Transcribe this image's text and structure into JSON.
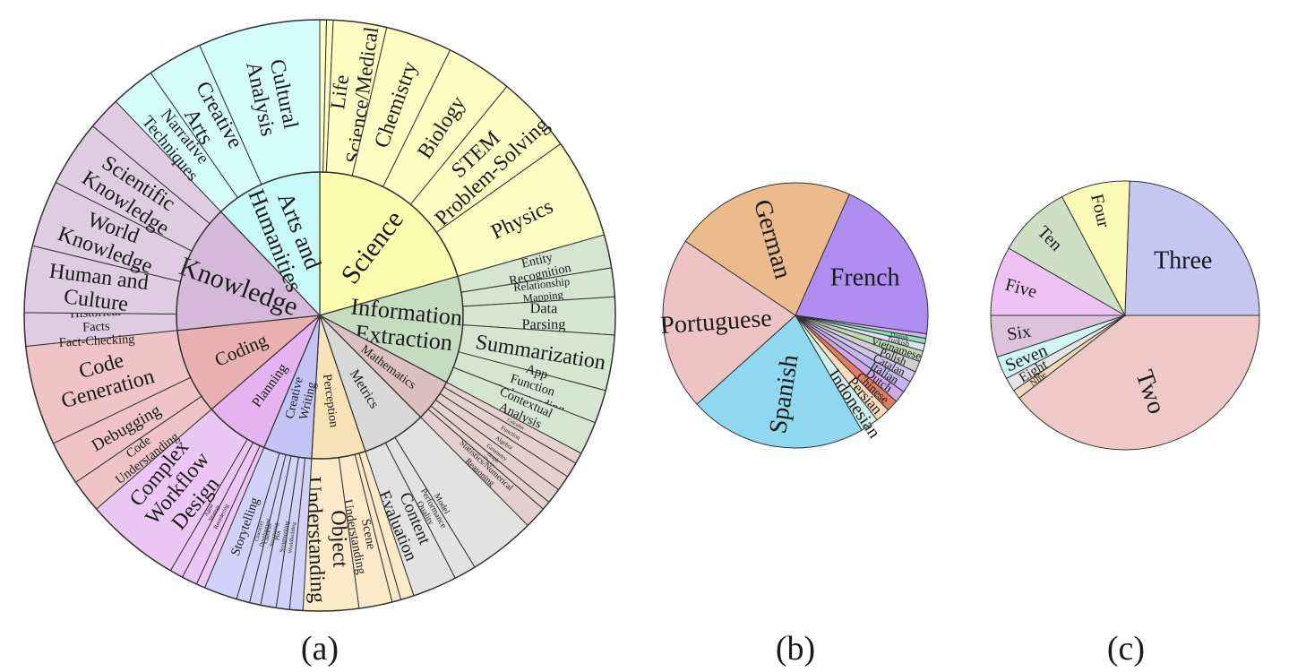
{
  "figure": {
    "panel_labels": [
      "(a)",
      "(b)",
      "(c)"
    ]
  },
  "chart_data": [
    {
      "type": "sunburst",
      "panel": "(a)",
      "inner": [
        {
          "name": "Science",
          "value": 17,
          "color": "#fdfdb0"
        },
        {
          "name": "Information\nExtraction",
          "value": 10,
          "color": "#c6dcc0"
        },
        {
          "name": "Mathematics",
          "value": 4,
          "color": "#dcc0c0"
        },
        {
          "name": "Metrics",
          "value": 6,
          "color": "#d8d8d8"
        },
        {
          "name": "Perception",
          "value": 5,
          "color": "#f8e3b8"
        },
        {
          "name": "Creative\nWriting",
          "value": 4.5,
          "color": "#c3c3f5"
        },
        {
          "name": "Planning",
          "value": 6,
          "color": "#e5b3f0"
        },
        {
          "name": "Coding",
          "value": 8,
          "color": "#e8b0b0"
        },
        {
          "name": "Knowledge",
          "value": 12,
          "color": "#d4bad8"
        },
        {
          "name": "Arts and\nHumanities",
          "value": 10,
          "color": "#c8fafa"
        }
      ],
      "outer": [
        {
          "parent": "Science",
          "items": [
            {
              "name": "",
              "value": 0.3
            },
            {
              "name": "",
              "value": 0.3
            },
            {
              "name": "Life\nScience/Medical",
              "value": 2.4
            },
            {
              "name": "Chemistry",
              "value": 3
            },
            {
              "name": "Biology",
              "value": 3
            },
            {
              "name": "STEM\nProblem-Solving",
              "value": 3.5
            },
            {
              "name": "Physics",
              "value": 4.5
            }
          ]
        },
        {
          "parent": "Information\nExtraction",
          "items": [
            {
              "name": "Entity\nRecognition",
              "value": 1.5
            },
            {
              "name": "Relationship\nMapping",
              "value": 1.3
            },
            {
              "name": "Data\nParsing",
              "value": 1.7
            },
            {
              "name": "Summarization",
              "value": 2.5
            },
            {
              "name": "App\nFunction\nUnderstanding",
              "value": 1.5
            },
            {
              "name": "Contextual\nAnalysis",
              "value": 1.5
            }
          ]
        },
        {
          "parent": "Mathematics",
          "items": [
            {
              "name": "Calculus",
              "value": 0.5
            },
            {
              "name": "Function",
              "value": 0.7
            },
            {
              "name": "Algebra",
              "value": 0.7
            },
            {
              "name": "Geometry",
              "value": 0.7
            },
            {
              "name": "Graph\nTheory",
              "value": 0.4
            },
            {
              "name": "Statistics/Numerical\nReasoning",
              "value": 1
            }
          ]
        },
        {
          "parent": "Metrics",
          "items": [
            {
              "name": "",
              "value": 3
            },
            {
              "name": "Model\nPerformance\nQuality\nAssessment",
              "value": 1
            },
            {
              "name": "Content\nEvaluation",
              "value": 2
            }
          ]
        },
        {
          "parent": "Perception",
          "items": [
            {
              "name": "",
              "value": 0.6
            },
            {
              "name": "",
              "value": 0.4
            },
            {
              "name": "Scene\nUnderstanding",
              "value": 1.5
            },
            {
              "name": "Object\nUnderstanding",
              "value": 2.5
            }
          ]
        },
        {
          "parent": "Creative\nWriting",
          "items": [
            {
              "name": "",
              "value": 0.6
            },
            {
              "name": "Worldbuilding",
              "value": 0.6
            },
            {
              "name": "Plot\nScriptwriting",
              "value": 0.7
            },
            {
              "name": "Character\nStructuring",
              "value": 0.5
            },
            {
              "name": "Character\nDevelopment",
              "value": 0.6
            },
            {
              "name": "Storytelling",
              "value": 1.5
            }
          ]
        },
        {
          "parent": "Planning",
          "items": [
            {
              "name": "",
              "value": 0.4
            },
            {
              "name": "Reordering",
              "value": 0.7
            },
            {
              "name": "Agent\nStrategy",
              "value": 0.6
            },
            {
              "name": "Complex\nWorkflow\nDesign",
              "value": 4.3
            }
          ]
        },
        {
          "parent": "Coding",
          "items": [
            {
              "name": "Code\nUnderstanding",
              "value": 1.5
            },
            {
              "name": "Debugging",
              "value": 2
            },
            {
              "name": "Code\nGeneration",
              "value": 4.5
            }
          ]
        },
        {
          "parent": "Knowledge",
          "items": [
            {
              "name": "Historical\nFacts\nFact-Checking",
              "value": 1.5
            },
            {
              "name": "Human and\nCulture",
              "value": 3
            },
            {
              "name": "World\nKnowledge",
              "value": 3
            },
            {
              "name": "Scientific\nKnowledge",
              "value": 3
            },
            {
              "name": "",
              "value": 1.5
            }
          ]
        },
        {
          "parent": "Arts and\nHumanities",
          "items": [
            {
              "name": "Narrative\nTechniques",
              "value": 2
            },
            {
              "name": "Creative\nArts",
              "value": 2.5
            },
            {
              "name": "Cultural\nAnalysis",
              "value": 5.5
            }
          ]
        }
      ]
    },
    {
      "type": "pie",
      "panel": "(b)",
      "slices": [
        {
          "name": "French",
          "value": 18.5,
          "color": "#b08df0"
        },
        {
          "name": "",
          "value": 0.5,
          "color": "#d0b8ee"
        },
        {
          "name": "Danish",
          "value": 0.6,
          "color": "#8fdcb8"
        },
        {
          "name": "Turkish",
          "value": 0.8,
          "color": "#d9e3f2"
        },
        {
          "name": "Vietnamese",
          "value": 1.2,
          "color": "#bdd8b4"
        },
        {
          "name": "Polish",
          "value": 1.2,
          "color": "#cfcfcf"
        },
        {
          "name": "Catalan",
          "value": 1.2,
          "color": "#cfc6ea"
        },
        {
          "name": "Italian",
          "value": 1.3,
          "color": "#c2b6ec"
        },
        {
          "name": "Dutch",
          "value": 1.3,
          "color": "#d0a8e6"
        },
        {
          "name": "Chinese",
          "value": 1.3,
          "color": "#e07c60"
        },
        {
          "name": "Persian",
          "value": 1.6,
          "color": "#fbdcc0"
        },
        {
          "name": "Indonesian",
          "value": 2,
          "color": "#d0f0ee"
        },
        {
          "name": "Spanish",
          "value": 19.5,
          "color": "#8fd8ef"
        },
        {
          "name": "Portuguese",
          "value": 19,
          "color": "#eec3c3"
        },
        {
          "name": "German",
          "value": 20,
          "color": "#ebbb8c"
        }
      ]
    },
    {
      "type": "pie",
      "panel": "(c)",
      "slices": [
        {
          "name": "Two",
          "value": 35.5,
          "color": "#efc8c8"
        },
        {
          "name": "Nine",
          "value": 1,
          "color": "#f3d6b5"
        },
        {
          "name": "Eight",
          "value": 1.5,
          "color": "#e5e5e5"
        },
        {
          "name": "Seven",
          "value": 2.5,
          "color": "#cff5f5"
        },
        {
          "name": "Six",
          "value": 4.5,
          "color": "#dcc2dc"
        },
        {
          "name": "Five",
          "value": 7.5,
          "color": "#eec2f2"
        },
        {
          "name": "Ten",
          "value": 8,
          "color": "#cde0c6"
        },
        {
          "name": "Four",
          "value": 7.5,
          "color": "#fbfbb8"
        },
        {
          "name": "Three",
          "value": 22,
          "color": "#c6c6f3"
        }
      ]
    }
  ]
}
